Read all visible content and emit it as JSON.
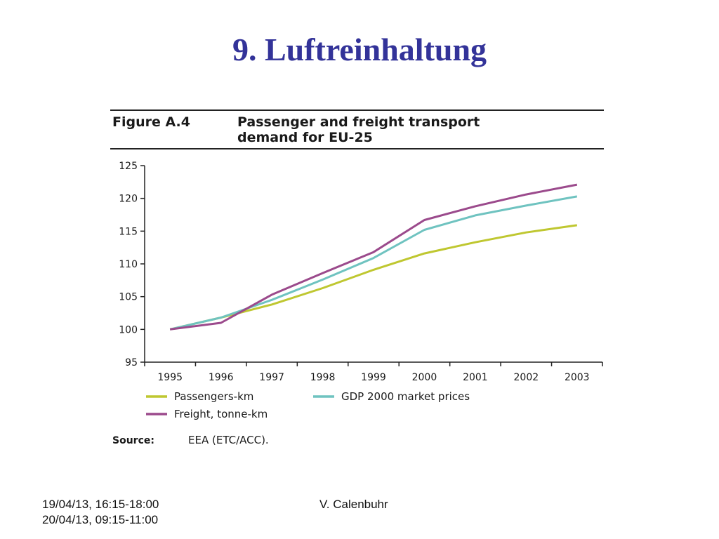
{
  "slide": {
    "title": "9. Luftreinhaltung",
    "footer_date_1": "19/04/13, 16:15-18:00",
    "footer_date_2": "20/04/13, 09:15-11:00",
    "footer_author": "V. Calenbuhr"
  },
  "figure": {
    "label": "Figure A.4",
    "title_line_1": "Passenger and freight transport",
    "title_line_2": "demand for EU-25",
    "source_label": "Source:",
    "source_text": "EEA (ETC/ACC)."
  },
  "chart_data": {
    "type": "line",
    "categories": [
      "1995",
      "1996",
      "1997",
      "1998",
      "1999",
      "2000",
      "2001",
      "2002",
      "2003"
    ],
    "ylim": [
      95,
      125
    ],
    "yticks": [
      95,
      100,
      105,
      110,
      115,
      120,
      125
    ],
    "series": [
      {
        "name": "Passengers-km",
        "color": "#bfc730",
        "values": [
          100,
          101.8,
          103.8,
          106.3,
          109.1,
          111.6,
          113.3,
          114.8,
          115.9
        ]
      },
      {
        "name": "GDP 2000 market prices",
        "color": "#6fc3c0",
        "values": [
          100,
          101.8,
          104.5,
          107.6,
          110.9,
          115.2,
          117.4,
          118.9,
          120.3
        ]
      },
      {
        "name": "Freight, tonne-km",
        "color": "#9b4a8c",
        "values": [
          100,
          101.0,
          105.3,
          108.6,
          111.8,
          116.7,
          118.8,
          120.6,
          122.1
        ]
      }
    ],
    "legend_position": "bottom"
  }
}
